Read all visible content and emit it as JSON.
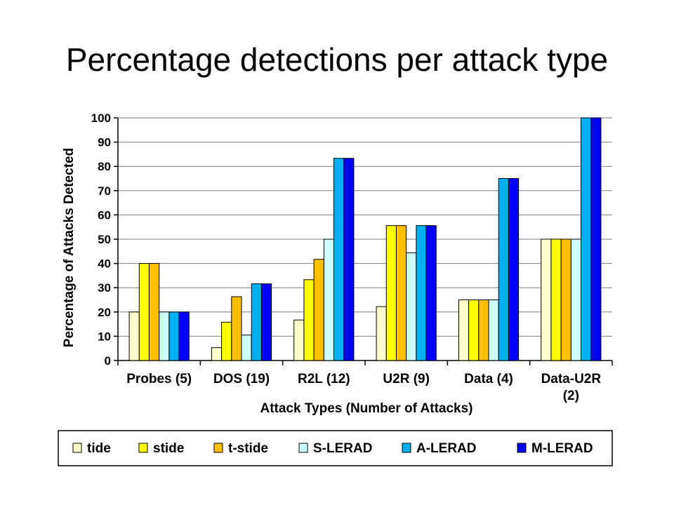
{
  "slide": {
    "title": "Percentage detections per attack type"
  },
  "chart_data": {
    "type": "bar",
    "title": "",
    "xlabel": "Attack Types (Number of Attacks)",
    "ylabel": "Percentage of Attacks Detected",
    "ylim": [
      0,
      100
    ],
    "yticks": [
      0,
      10,
      20,
      30,
      40,
      50,
      60,
      70,
      80,
      90,
      100
    ],
    "grid": true,
    "legend_position": "bottom",
    "categories": [
      "Probes (5)",
      "DOS (19)",
      "R2L (12)",
      "U2R (9)",
      "Data (4)",
      "Data-U2R (2)"
    ],
    "category_lines": [
      [
        "Probes (5)"
      ],
      [
        "DOS (19)"
      ],
      [
        "R2L (12)"
      ],
      [
        "U2R (9)"
      ],
      [
        "Data (4)"
      ],
      [
        "Data-U2R",
        "(2)"
      ]
    ],
    "series": [
      {
        "name": "tide",
        "color": "#ffffcc",
        "values": [
          20,
          5.3,
          16.7,
          22.2,
          25,
          50
        ]
      },
      {
        "name": "stide",
        "color": "#ffff00",
        "values": [
          40,
          15.8,
          33.3,
          55.6,
          25,
          50
        ]
      },
      {
        "name": "t-stide",
        "color": "#ffc000",
        "values": [
          40,
          26.3,
          41.7,
          55.6,
          25,
          50
        ]
      },
      {
        "name": "S-LERAD",
        "color": "#ccffff",
        "values": [
          20,
          10.5,
          50,
          44.4,
          25,
          50
        ]
      },
      {
        "name": "A-LERAD",
        "color": "#00b0f0",
        "values": [
          20,
          31.6,
          83.3,
          55.6,
          75,
          100
        ]
      },
      {
        "name": "M-LERAD",
        "color": "#0000ff",
        "values": [
          20,
          31.6,
          83.3,
          55.6,
          75,
          100
        ]
      }
    ]
  }
}
